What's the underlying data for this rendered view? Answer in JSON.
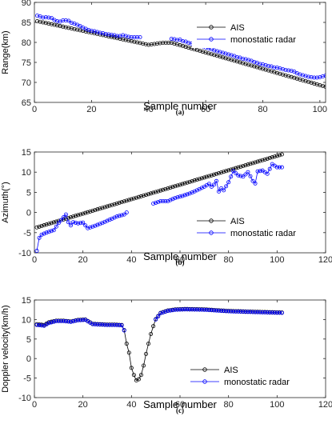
{
  "chart_data": [
    {
      "type": "line",
      "caption": "(a)",
      "xlabel": "Sample number",
      "ylabel": "Range(km)",
      "xlim": [
        0,
        102
      ],
      "ylim": [
        65,
        90
      ],
      "xticks": [
        0,
        20,
        40,
        60,
        80,
        100
      ],
      "yticks": [
        65,
        70,
        75,
        80,
        85,
        90
      ],
      "legend": "top-right",
      "series": [
        {
          "name": "AIS",
          "color": "#000000",
          "points": [
            [
              1,
              85.3
            ],
            [
              38,
              79.7
            ],
            [
              40,
              79.4
            ],
            [
              45,
              79.9
            ],
            [
              48,
              79.9
            ],
            [
              50,
              79.5
            ],
            [
              102,
              68.9
            ]
          ]
        },
        {
          "name": "monostatic radar",
          "color": "#0000ff",
          "points": [
            [
              1,
              86.7
            ],
            [
              2,
              86.5
            ],
            [
              3,
              86.2
            ],
            [
              4,
              86.3
            ],
            [
              5,
              86.2
            ],
            [
              6,
              86.1
            ],
            [
              7,
              85.6
            ],
            [
              8,
              85.3
            ],
            [
              9,
              85.2
            ],
            [
              10,
              85.5
            ],
            [
              11,
              85.5
            ],
            [
              12,
              85.4
            ],
            [
              13,
              84.9
            ],
            [
              14,
              84.7
            ],
            [
              15,
              84.4
            ],
            [
              16,
              84.1
            ],
            [
              17,
              83.7
            ],
            [
              18,
              83.4
            ],
            [
              19,
              83.1
            ],
            [
              20,
              82.9
            ],
            [
              21,
              82.8
            ],
            [
              22,
              82.6
            ],
            [
              23,
              82.4
            ],
            [
              24,
              82.3
            ],
            [
              25,
              82.1
            ],
            [
              26,
              82.0
            ],
            [
              27,
              81.9
            ],
            [
              28,
              81.8
            ],
            [
              29,
              81.6
            ],
            [
              30,
              81.6
            ],
            [
              31,
              81.8
            ],
            [
              32,
              81.6
            ],
            [
              33,
              81.4
            ],
            [
              34,
              81.3
            ],
            [
              35,
              81.3
            ],
            [
              36,
              81.3
            ],
            [
              37,
              81.3
            ],
            null,
            [
              48,
              80.9
            ],
            [
              49,
              80.8
            ],
            [
              50,
              80.6
            ],
            [
              51,
              80.7
            ],
            [
              52,
              80.3
            ],
            [
              53,
              80.2
            ],
            [
              54,
              79.9
            ],
            [
              55,
              79.7
            ],
            [
              56,
              79.5
            ],
            [
              57,
              79.3
            ],
            [
              58,
              79.2
            ],
            [
              59,
              79.0
            ],
            [
              60,
              78.7
            ],
            [
              61,
              78.5
            ],
            [
              62,
              78.3
            ],
            [
              63,
              78.0
            ],
            [
              64,
              77.8
            ],
            [
              65,
              77.6
            ],
            [
              66,
              77.4
            ],
            [
              67,
              77.2
            ],
            [
              68,
              77.0
            ],
            [
              69,
              76.8
            ],
            [
              70,
              76.6
            ],
            [
              71,
              76.3
            ],
            [
              72,
              76.2
            ],
            [
              73,
              75.9
            ],
            [
              74,
              75.8
            ],
            [
              75,
              75.6
            ],
            [
              76,
              75.4
            ],
            [
              77,
              75.1
            ],
            [
              78,
              74.9
            ],
            [
              79,
              74.6
            ],
            [
              80,
              74.5
            ],
            [
              81,
              74.3
            ],
            [
              82,
              74.1
            ],
            [
              83,
              74.0
            ],
            [
              84,
              73.7
            ],
            [
              85,
              73.7
            ],
            [
              86,
              73.5
            ],
            [
              87,
              73.3
            ],
            [
              88,
              73.1
            ],
            [
              89,
              73.0
            ],
            [
              90,
              72.9
            ],
            [
              91,
              72.7
            ],
            [
              92,
              72.3
            ],
            [
              93,
              72.0
            ],
            [
              94,
              71.8
            ],
            [
              95,
              71.6
            ],
            [
              96,
              71.4
            ],
            [
              97,
              71.3
            ],
            [
              98,
              71.2
            ],
            [
              99,
              71.2
            ],
            [
              100,
              71.3
            ],
            [
              101,
              71.5
            ],
            [
              102,
              71.7
            ]
          ]
        }
      ]
    },
    {
      "type": "line",
      "caption": "(b)",
      "xlabel": "Sample number",
      "ylabel": "Azimuth(°)",
      "xlim": [
        0,
        120
      ],
      "ylim": [
        -10,
        15
      ],
      "xticks": [
        0,
        20,
        40,
        60,
        80,
        100,
        120
      ],
      "yticks": [
        -10,
        -5,
        0,
        5,
        10,
        15
      ],
      "legend": "center-right",
      "series": [
        {
          "name": "AIS",
          "color": "#000000",
          "points": [
            [
              1,
              -3.7
            ],
            [
              102,
              14.4
            ]
          ]
        },
        {
          "name": "monostatic radar",
          "color": "#0000ff",
          "points": [
            [
              1,
              -9.5
            ],
            [
              2,
              -6.3
            ],
            [
              3,
              -5.5
            ],
            [
              5,
              -5.0
            ],
            [
              8,
              -4.4
            ],
            [
              10,
              -2.6
            ],
            [
              12,
              -1.2
            ],
            [
              13,
              -0.5
            ],
            [
              14,
              -2.4
            ],
            [
              15,
              -3.2
            ],
            [
              16,
              -2.4
            ],
            [
              18,
              -2.7
            ],
            [
              20,
              -2.5
            ],
            [
              22,
              -3.9
            ],
            [
              25,
              -3.3
            ],
            [
              28,
              -2.6
            ],
            [
              31,
              -1.8
            ],
            [
              34,
              -1.0
            ],
            [
              37,
              -0.5
            ],
            [
              38,
              0.0
            ],
            null,
            [
              49,
              2.2
            ],
            [
              52,
              2.8
            ],
            [
              55,
              2.8
            ],
            [
              58,
              3.6
            ],
            [
              61,
              4.1
            ],
            [
              64,
              4.7
            ],
            [
              67,
              5.5
            ],
            [
              70,
              6.4
            ],
            [
              72,
              7.1
            ],
            [
              73,
              6.4
            ],
            [
              74,
              6.9
            ],
            [
              75,
              7.8
            ],
            [
              76,
              5.2
            ],
            [
              77,
              6.0
            ],
            [
              78,
              5.5
            ],
            [
              80,
              7.5
            ],
            [
              82,
              10.3
            ],
            [
              84,
              9.2
            ],
            [
              86,
              8.9
            ],
            [
              88,
              10.0
            ],
            [
              89,
              9.0
            ],
            [
              90,
              7.8
            ],
            [
              91,
              7.2
            ],
            [
              92,
              10.2
            ],
            [
              94,
              10.4
            ],
            [
              96,
              9.6
            ],
            [
              98,
              12.0
            ],
            [
              100,
              11.2
            ],
            [
              102,
              11.2
            ]
          ]
        }
      ]
    },
    {
      "type": "line",
      "caption": "(c)",
      "xlabel": "Sample number",
      "ylabel": "Doppler velocity(km/h)",
      "xlim": [
        0,
        120
      ],
      "ylim": [
        -10,
        15
      ],
      "xticks": [
        0,
        20,
        40,
        60,
        80,
        100,
        120
      ],
      "yticks": [
        -10,
        -5,
        0,
        5,
        10,
        15
      ],
      "legend": "bottom-right",
      "series": [
        {
          "name": "AIS",
          "color": "#000000",
          "points": [
            [
              1,
              8.8
            ],
            [
              4,
              8.6
            ],
            [
              6,
              9.3
            ],
            [
              9,
              9.7
            ],
            [
              12,
              9.7
            ],
            [
              15,
              9.5
            ],
            [
              18,
              9.9
            ],
            [
              21,
              10.0
            ],
            [
              24,
              8.9
            ],
            [
              27,
              8.8
            ],
            [
              30,
              8.7
            ],
            [
              33,
              8.7
            ],
            [
              36,
              8.6
            ],
            [
              37,
              7.3
            ],
            [
              38,
              3.8
            ],
            [
              39,
              1.5
            ],
            [
              40,
              -2.4
            ],
            [
              41,
              -4.2
            ],
            [
              42,
              -5.6
            ],
            [
              43,
              -5.3
            ],
            [
              44,
              -4.2
            ],
            [
              45,
              -1.8
            ],
            [
              46,
              1.2
            ],
            [
              47,
              3.8
            ],
            [
              48,
              6.3
            ],
            [
              49,
              8.3
            ],
            [
              50,
              10.1
            ],
            [
              51,
              10.9
            ],
            [
              52,
              11.7
            ],
            [
              55,
              12.3
            ],
            [
              58,
              12.6
            ],
            [
              62,
              12.7
            ],
            [
              70,
              12.6
            ],
            [
              80,
              12.2
            ],
            [
              90,
              12.0
            ],
            [
              102,
              11.8
            ]
          ]
        },
        {
          "name": "monostatic radar",
          "color": "#0000ff",
          "points": [
            [
              1,
              8.6
            ],
            [
              4,
              8.4
            ],
            [
              6,
              9.1
            ],
            [
              9,
              9.6
            ],
            [
              12,
              9.6
            ],
            [
              15,
              9.4
            ],
            [
              18,
              9.8
            ],
            [
              21,
              9.9
            ],
            [
              24,
              8.8
            ],
            [
              27,
              8.7
            ],
            [
              30,
              8.6
            ],
            [
              33,
              8.6
            ],
            [
              36,
              8.5
            ],
            [
              37,
              7.2
            ],
            null,
            [
              50,
              10.0
            ],
            [
              51,
              10.8
            ],
            [
              52,
              11.6
            ],
            [
              55,
              12.2
            ],
            [
              58,
              12.5
            ],
            [
              62,
              12.6
            ],
            [
              70,
              12.5
            ],
            [
              80,
              12.1
            ],
            [
              90,
              11.9
            ],
            [
              102,
              11.7
            ]
          ]
        }
      ]
    }
  ]
}
